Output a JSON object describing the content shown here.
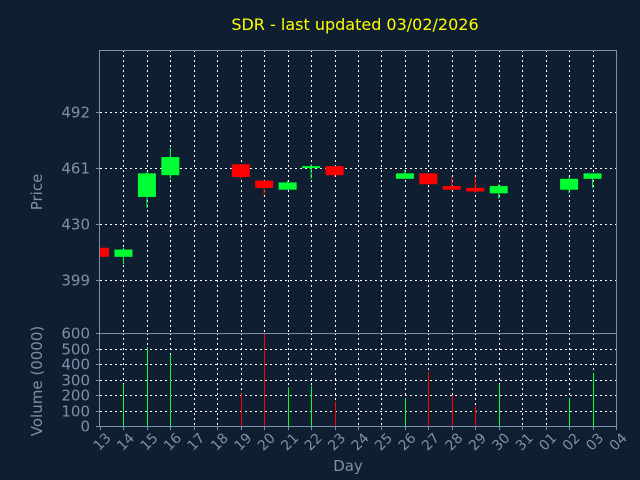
{
  "chart_data": [
    {
      "type": "candlestick",
      "title": "SDR - last updated 03/02/2026",
      "xlabel": "",
      "ylabel": "Price",
      "ylim": [
        370,
        526
      ],
      "yticks": [
        399,
        430,
        461,
        492
      ],
      "grid": true,
      "colors": {
        "up": "#00ff33",
        "down": "#ff0000"
      },
      "x": [
        "13",
        "14",
        "15",
        "16",
        "17",
        "18",
        "19",
        "20",
        "21",
        "22",
        "23",
        "24",
        "25",
        "26",
        "27",
        "28",
        "29",
        "30",
        "31",
        "01",
        "02",
        "03",
        "04"
      ],
      "candles": [
        {
          "x": "13",
          "open": 417,
          "high": 417,
          "low": 412,
          "close": 412
        },
        {
          "x": "14",
          "open": 412,
          "high": 417,
          "low": 408,
          "close": 416
        },
        {
          "x": "15",
          "open": 445,
          "high": 459,
          "low": 439,
          "close": 458
        },
        {
          "x": "16",
          "open": 457,
          "high": 472,
          "low": 455,
          "close": 467
        },
        {
          "x": "19",
          "open": 463,
          "high": 463,
          "low": 455,
          "close": 456
        },
        {
          "x": "20",
          "open": 454,
          "high": 454,
          "low": 446,
          "close": 450
        },
        {
          "x": "21",
          "open": 449,
          "high": 454,
          "low": 449,
          "close": 453
        },
        {
          "x": "22",
          "open": 461,
          "high": 463,
          "low": 455,
          "close": 462
        },
        {
          "x": "23",
          "open": 462,
          "high": 462,
          "low": 456,
          "close": 457
        },
        {
          "x": "26",
          "open": 455,
          "high": 460,
          "low": 455,
          "close": 458
        },
        {
          "x": "27",
          "open": 458,
          "high": 458,
          "low": 452,
          "close": 452
        },
        {
          "x": "28",
          "open": 451,
          "high": 456,
          "low": 449,
          "close": 449
        },
        {
          "x": "29",
          "open": 450,
          "high": 456,
          "low": 447,
          "close": 448
        },
        {
          "x": "30",
          "open": 447,
          "high": 452,
          "low": 444,
          "close": 451
        },
        {
          "x": "02",
          "open": 449,
          "high": 456,
          "low": 447,
          "close": 455
        },
        {
          "x": "03",
          "open": 455,
          "high": 458,
          "low": 450,
          "close": 458
        }
      ]
    },
    {
      "type": "bar",
      "title": "",
      "xlabel": "Day",
      "ylabel": "Volume (0000)",
      "ylim": [
        0,
        600
      ],
      "yticks": [
        0,
        100,
        200,
        300,
        400,
        500,
        600
      ],
      "grid": true,
      "x": [
        "13",
        "14",
        "15",
        "16",
        "17",
        "18",
        "19",
        "20",
        "21",
        "22",
        "23",
        "24",
        "25",
        "26",
        "27",
        "28",
        "29",
        "30",
        "31",
        "01",
        "02",
        "03",
        "04"
      ],
      "bars": [
        {
          "x": "14",
          "value": 270,
          "direction": "up"
        },
        {
          "x": "15",
          "value": 510,
          "direction": "up"
        },
        {
          "x": "16",
          "value": 460,
          "direction": "up"
        },
        {
          "x": "19",
          "value": 210,
          "direction": "down"
        },
        {
          "x": "20",
          "value": 600,
          "direction": "down"
        },
        {
          "x": "21",
          "value": 250,
          "direction": "up"
        },
        {
          "x": "22",
          "value": 260,
          "direction": "up"
        },
        {
          "x": "23",
          "value": 160,
          "direction": "down"
        },
        {
          "x": "26",
          "value": 180,
          "direction": "up"
        },
        {
          "x": "27",
          "value": 350,
          "direction": "down"
        },
        {
          "x": "28",
          "value": 200,
          "direction": "down"
        },
        {
          "x": "29",
          "value": 130,
          "direction": "down"
        },
        {
          "x": "30",
          "value": 270,
          "direction": "up"
        },
        {
          "x": "02",
          "value": 180,
          "direction": "up"
        },
        {
          "x": "03",
          "value": 340,
          "direction": "up"
        }
      ]
    }
  ]
}
